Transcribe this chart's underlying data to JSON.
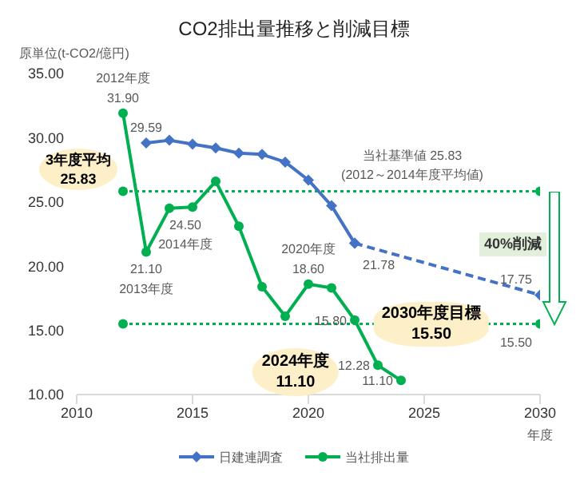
{
  "chart_data": {
    "type": "line",
    "title": "CO2排出量推移と削減目標",
    "ylabel": "原単位(t-CO2/億円)",
    "xlabel": "年度",
    "x": [
      2012,
      2013,
      2014,
      2015,
      2016,
      2017,
      2018,
      2019,
      2020,
      2021,
      2022,
      2023,
      2024
    ],
    "series": [
      {
        "name": "日建連調査",
        "color": "#4472c4",
        "marker": "diamond",
        "values": [
          null,
          29.59,
          29.8,
          29.5,
          29.2,
          28.8,
          28.7,
          28.1,
          26.7,
          24.7,
          21.78,
          null,
          null
        ],
        "value_labels": [
          null,
          "29.59",
          null,
          null,
          null,
          null,
          null,
          null,
          null,
          null,
          "21.78",
          null,
          null
        ]
      },
      {
        "name": "当社排出量",
        "color": "#00b050",
        "marker": "circle",
        "values": [
          31.9,
          21.1,
          24.5,
          24.6,
          26.6,
          23.1,
          18.4,
          16.1,
          18.6,
          18.3,
          15.8,
          12.28,
          11.1
        ],
        "value_labels": [
          "31.90",
          "21.10",
          "24.50",
          null,
          null,
          null,
          null,
          null,
          "18.60",
          null,
          "15.80",
          "12.28",
          "11.10"
        ]
      },
      {
        "color": "#4472c4",
        "marker": "diamond",
        "line_style": "dashed",
        "x": [
          2022,
          2030
        ],
        "values": [
          21.78,
          17.75
        ],
        "value_labels": [
          null,
          "17.75"
        ]
      },
      {
        "type": "scatter",
        "color": "#00b050",
        "marker": "circle",
        "x": [
          2012,
          2030,
          2012,
          2030
        ],
        "values": [
          25.83,
          25.83,
          15.5,
          15.5
        ],
        "value_labels": [
          null,
          null,
          null,
          "15.50"
        ]
      }
    ],
    "ref_lines": [
      {
        "axis": "y",
        "value": 25.83,
        "label": "当社基準値 25.83\n(2012～2014年度平均値)",
        "color": "#00b050",
        "line_style": "dotted"
      },
      {
        "axis": "y",
        "value": 15.5,
        "label": "2030年度目標\n15.50",
        "color": "#00b050",
        "line_style": "dotted"
      }
    ],
    "annotations": [
      {
        "text": "2012年度",
        "x": 2012,
        "y": 31.9
      },
      {
        "text": "2013年度",
        "x": 2013,
        "y": 21.1
      },
      {
        "text": "2014年度",
        "x": 2014,
        "y": 24.5
      },
      {
        "text": "2020年度",
        "x": 2020,
        "y": 18.6
      },
      {
        "text": "3年度平均\n25.83",
        "x": 2012,
        "y": 25.83
      },
      "2024年度\n11.10",
      "40%削減"
    ],
    "xlim": [
      2010,
      2030
    ],
    "xticks": [
      2010,
      2015,
      2020,
      2025,
      2030
    ],
    "ylim": [
      10,
      35
    ],
    "yticks": [
      {
        "value": 10,
        "label": "10.00"
      },
      {
        "value": 15,
        "label": "15.00"
      },
      {
        "value": 20,
        "label": "20.00"
      },
      {
        "value": 25,
        "label": "25.00"
      },
      {
        "value": 30,
        "label": "30.00"
      },
      {
        "value": 35,
        "label": "35.00"
      }
    ],
    "grid": false,
    "legend": "bottom"
  }
}
